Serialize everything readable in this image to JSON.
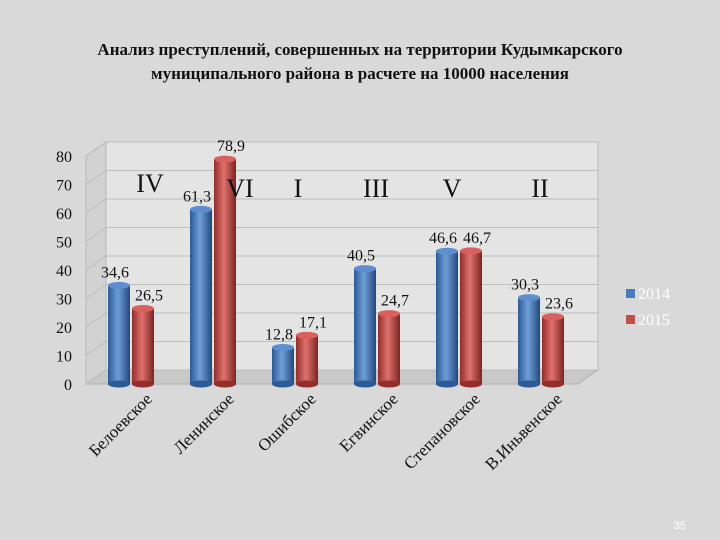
{
  "title_lines": [
    "Анализ преступлений, совершенных на территории Кудымкарского",
    "муниципального района в расчете на 10000 населения"
  ],
  "page_number": "35",
  "colors": {
    "series_2014": "#4a7ebb",
    "series_2015": "#c0504d"
  },
  "chart_data": {
    "type": "bar",
    "title": "Анализ преступлений, совершенных на территории Кудымкарского муниципального района в расчете на 10000 населения",
    "categories": [
      "Белоевское",
      "Ленинское",
      "Ошибское",
      "Егвинское",
      "Степановское",
      "В.Иньвенское"
    ],
    "ranks": [
      "IV",
      "VI",
      "I",
      "III",
      "V",
      "II"
    ],
    "series": [
      {
        "name": "2014",
        "values": [
          34.6,
          61.3,
          12.8,
          40.5,
          46.6,
          30.3
        ],
        "labels": [
          "34,6",
          "61,3",
          "12,8",
          "40,5",
          "46,6",
          "30,3"
        ]
      },
      {
        "name": "2015",
        "values": [
          26.5,
          78.9,
          17.1,
          24.7,
          46.7,
          23.6
        ],
        "labels": [
          "26,5",
          "78,9",
          "17,1",
          "24,7",
          "46,7",
          "23,6"
        ]
      }
    ],
    "ylim": [
      0,
      80
    ],
    "yticks": [
      "0",
      "10",
      "20",
      "30",
      "40",
      "50",
      "60",
      "70",
      "80"
    ],
    "grid": true,
    "legend": "right",
    "xlabel": "",
    "ylabel": ""
  }
}
